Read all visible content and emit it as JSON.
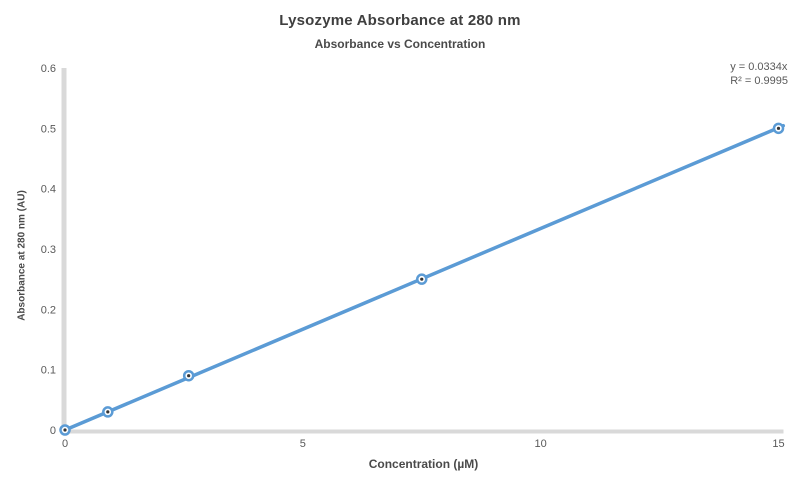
{
  "chart_data": {
    "type": "scatter",
    "title": "Lysozyme Absorbance at 280 nm",
    "subtitle": "Absorbance vs Concentration",
    "xlabel": "Concentration (µM)",
    "ylabel": "Absorbance at 280 nm (AU)",
    "x": [
      0,
      0.9,
      2.6,
      7.5,
      15
    ],
    "y": [
      0,
      0.03,
      0.09,
      0.25,
      0.5
    ],
    "trendline": {
      "label": "y = 0.0334x",
      "r2_label": "R² = 0.9995",
      "slope": 0.0334,
      "intercept": 0,
      "x_start": 0,
      "x_end": 15.1
    },
    "xlim": [
      0,
      15.3
    ],
    "ylim": [
      0,
      0.6
    ],
    "x_ticks": [
      0,
      5,
      10,
      15
    ],
    "y_ticks": [
      0,
      0.1,
      0.2,
      0.3,
      0.4,
      0.5,
      0.6
    ],
    "grid": false,
    "legend": false,
    "marker": "open-circle",
    "colors": {
      "line": "#5B9BD5",
      "marker_stroke": "#5B9BD5",
      "marker_fill": "#FFFFFF",
      "marker_center": "#333333",
      "axis_line": "#D9D9D9",
      "tick_text": "#595959",
      "title_text": "#3F3F3F"
    }
  }
}
